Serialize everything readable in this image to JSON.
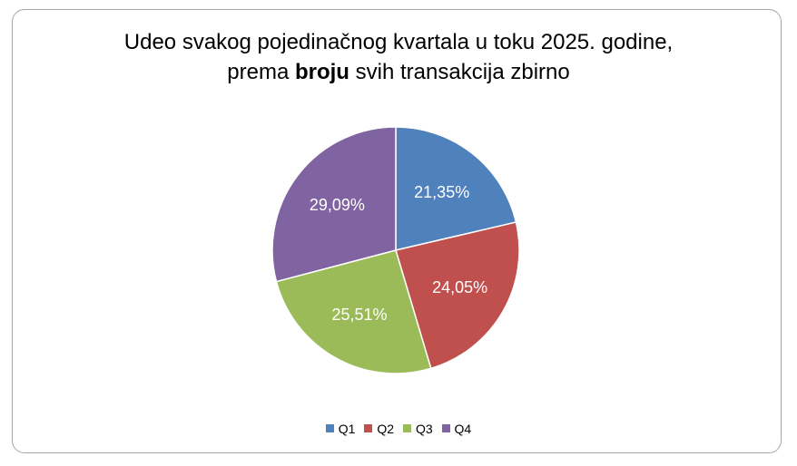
{
  "chart_data": {
    "type": "pie",
    "title_line1": "Udeo svakog pojedinačnog kvartala u toku 2025. godine,",
    "title_line2_pre": "prema ",
    "title_line2_bold": "broju",
    "title_line2_post": " svih transakcija zbirno",
    "categories": [
      "Q1",
      "Q2",
      "Q3",
      "Q4"
    ],
    "values": [
      21.35,
      24.05,
      25.51,
      29.09
    ],
    "labels": [
      "21,35%",
      "24,05%",
      "25,51%",
      "29,09%"
    ],
    "colors": [
      "#4f81bd",
      "#c0504d",
      "#9bbb59",
      "#8064a2"
    ],
    "legend_position": "bottom"
  }
}
